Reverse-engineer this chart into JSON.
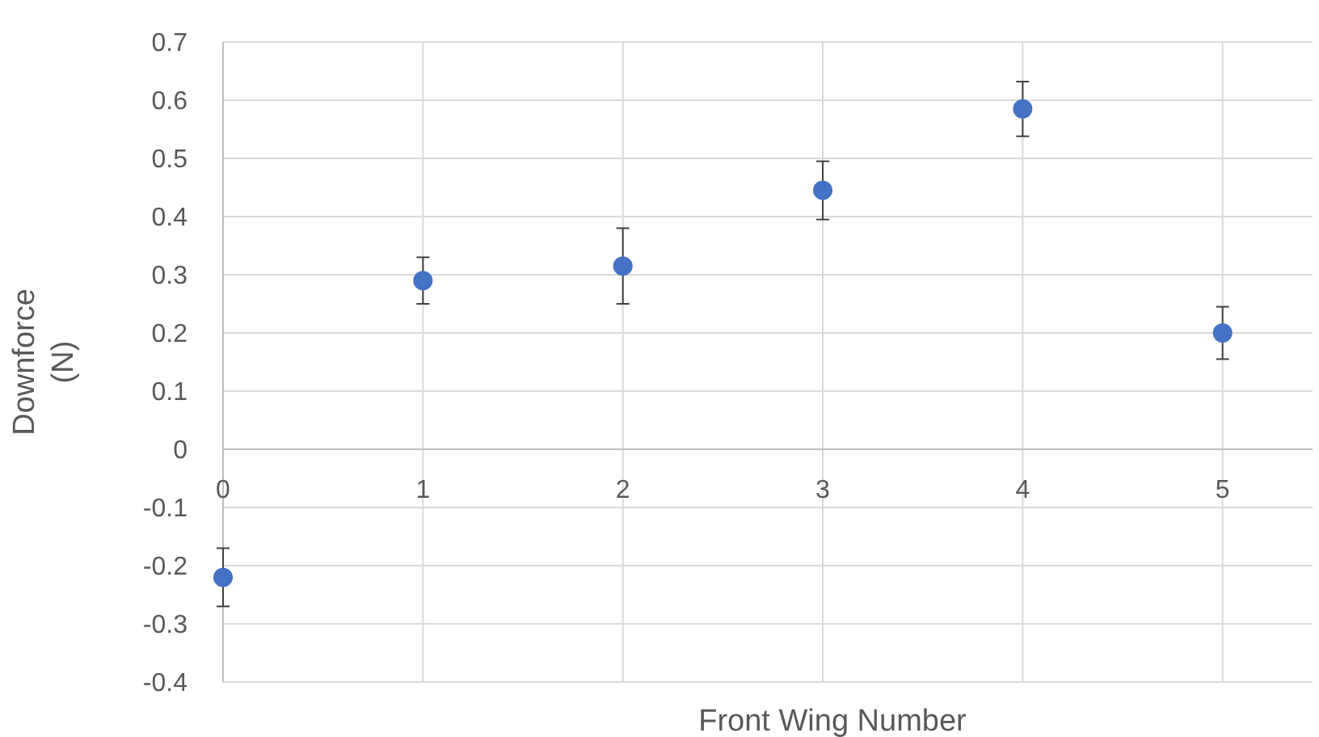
{
  "chart_data": {
    "type": "scatter",
    "xlabel": "Front Wing Number",
    "ylabel": "Downforce\n(N)",
    "x": [
      0,
      1,
      2,
      3,
      4,
      5
    ],
    "values": [
      -0.22,
      0.29,
      0.315,
      0.445,
      0.585,
      0.2
    ],
    "errors": [
      0.05,
      0.04,
      0.065,
      0.05,
      0.047,
      0.045
    ],
    "color": "#4472c4",
    "marker": "circle",
    "xlim": [
      0,
      5.45
    ],
    "xticks": [
      0,
      1,
      2,
      3,
      4,
      5
    ],
    "ylim": [
      -0.4,
      0.7
    ],
    "yticks": [
      -0.4,
      -0.3,
      -0.2,
      -0.1,
      0,
      0.1,
      0.2,
      0.3,
      0.4,
      0.5,
      0.6,
      0.7
    ],
    "grid": true
  }
}
